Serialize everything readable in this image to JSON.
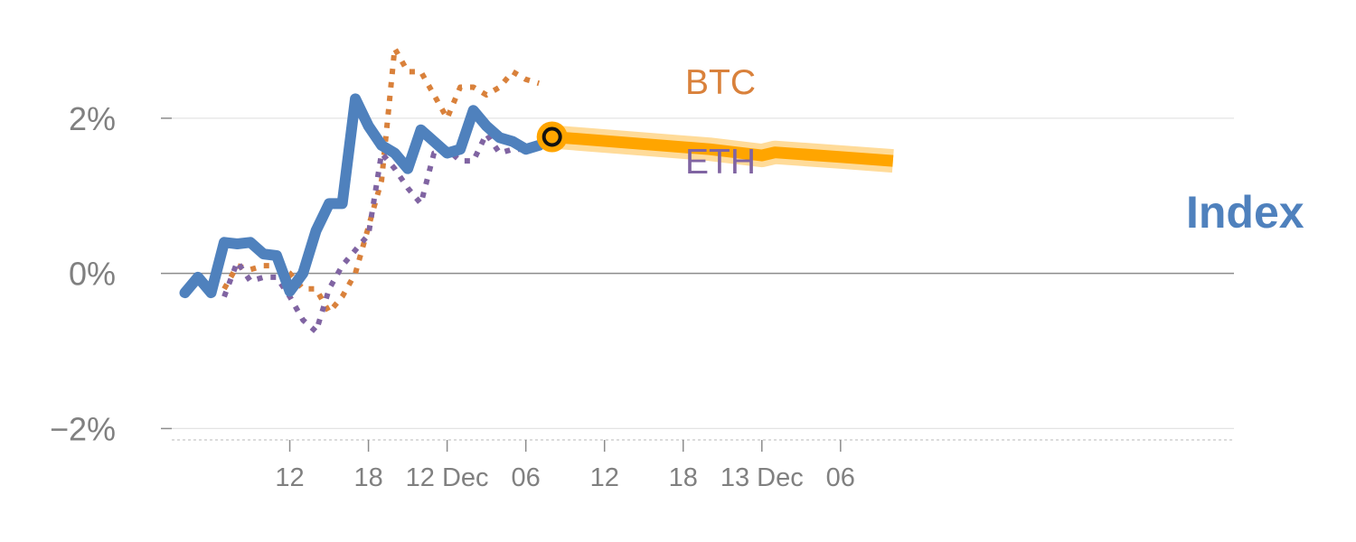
{
  "chart_data": {
    "type": "line",
    "y_axis": {
      "ticks": [
        {
          "value": 2,
          "label": "2%"
        },
        {
          "value": 0,
          "label": "0%"
        },
        {
          "value": -2,
          "label": "−2%"
        }
      ],
      "ylim": [
        -2.1,
        3.0
      ]
    },
    "x_axis": {
      "xlim": [
        "2024-12-11T03:00",
        "2024-12-14T12:00"
      ],
      "ticks": [
        {
          "value": "2024-12-11T12:00",
          "label": "12"
        },
        {
          "value": "2024-12-11T18:00",
          "label": "18"
        },
        {
          "value": "2024-12-12T00:00",
          "label": "12 Dec"
        },
        {
          "value": "2024-12-12T06:00",
          "label": "06"
        },
        {
          "value": "2024-12-12T12:00",
          "label": "12"
        },
        {
          "value": "2024-12-12T18:00",
          "label": "18"
        },
        {
          "value": "2024-12-13T00:00",
          "label": "13 Dec"
        },
        {
          "value": "2024-12-13T06:00",
          "label": "06"
        }
      ]
    },
    "series": [
      {
        "name": "BTC",
        "color": "#d9813b",
        "style": "dotted",
        "x": [
          "2024-12-11T07:00",
          "2024-12-11T08:00",
          "2024-12-11T09:00",
          "2024-12-11T10:00",
          "2024-12-11T11:00",
          "2024-12-11T12:00",
          "2024-12-11T13:00",
          "2024-12-11T14:00",
          "2024-12-11T15:00",
          "2024-12-11T16:00",
          "2024-12-11T17:00",
          "2024-12-11T18:00",
          "2024-12-11T19:00",
          "2024-12-11T20:00",
          "2024-12-11T21:00",
          "2024-12-11T22:00",
          "2024-12-11T23:00",
          "2024-12-12T00:00",
          "2024-12-12T01:00",
          "2024-12-12T02:00",
          "2024-12-12T03:00",
          "2024-12-12T04:00",
          "2024-12-12T05:00",
          "2024-12-12T06:00",
          "2024-12-12T07:00"
        ],
        "values": [
          -0.2,
          0.1,
          0.05,
          0.1,
          0.1,
          0.0,
          -0.2,
          -0.2,
          -0.5,
          -0.3,
          0.0,
          0.6,
          1.2,
          2.9,
          2.6,
          2.6,
          2.3,
          2.0,
          2.4,
          2.4,
          2.3,
          2.4,
          2.6,
          2.5,
          2.45
        ]
      },
      {
        "name": "ETH",
        "color": "#8064a2",
        "style": "dotted",
        "x": [
          "2024-12-11T07:00",
          "2024-12-11T08:00",
          "2024-12-11T09:00",
          "2024-12-11T10:00",
          "2024-12-11T11:00",
          "2024-12-11T12:00",
          "2024-12-11T13:00",
          "2024-12-11T14:00",
          "2024-12-11T15:00",
          "2024-12-11T16:00",
          "2024-12-11T17:00",
          "2024-12-11T18:00",
          "2024-12-11T19:00",
          "2024-12-11T20:00",
          "2024-12-11T21:00",
          "2024-12-11T22:00",
          "2024-12-11T23:00",
          "2024-12-12T00:00",
          "2024-12-12T01:00",
          "2024-12-12T02:00",
          "2024-12-12T03:00",
          "2024-12-12T04:00",
          "2024-12-12T05:00",
          "2024-12-12T06:00",
          "2024-12-12T07:00"
        ],
        "values": [
          -0.3,
          0.15,
          -0.1,
          -0.05,
          -0.05,
          -0.3,
          -0.6,
          -0.75,
          -0.2,
          0.1,
          0.3,
          0.5,
          1.55,
          1.35,
          1.1,
          0.9,
          1.55,
          1.6,
          1.45,
          1.45,
          1.8,
          1.55,
          1.6,
          1.6,
          1.65
        ]
      },
      {
        "name": "Index",
        "color": "#4f81bd",
        "style": "solid",
        "x": [
          "2024-12-11T04:00",
          "2024-12-11T05:00",
          "2024-12-11T06:00",
          "2024-12-11T07:00",
          "2024-12-11T08:00",
          "2024-12-11T09:00",
          "2024-12-11T10:00",
          "2024-12-11T11:00",
          "2024-12-11T12:00",
          "2024-12-11T13:00",
          "2024-12-11T14:00",
          "2024-12-11T15:00",
          "2024-12-11T16:00",
          "2024-12-11T17:00",
          "2024-12-11T18:00",
          "2024-12-11T19:00",
          "2024-12-11T20:00",
          "2024-12-11T21:00",
          "2024-12-11T22:00",
          "2024-12-11T23:00",
          "2024-12-12T00:00",
          "2024-12-12T01:00",
          "2024-12-12T02:00",
          "2024-12-12T03:00",
          "2024-12-12T04:00",
          "2024-12-12T05:00",
          "2024-12-12T06:00",
          "2024-12-12T07:00"
        ],
        "values": [
          -0.25,
          -0.05,
          -0.25,
          0.4,
          0.38,
          0.4,
          0.25,
          0.23,
          -0.23,
          0.0,
          0.55,
          0.9,
          0.9,
          2.25,
          1.9,
          1.65,
          1.55,
          1.35,
          1.85,
          1.7,
          1.55,
          1.6,
          2.1,
          1.9,
          1.75,
          1.7,
          1.6,
          1.65
        ]
      },
      {
        "name": "forecast",
        "color": "#ffa500",
        "style": "band",
        "x": [
          "2024-12-12T08:00",
          "2024-12-12T20:00",
          "2024-12-13T00:00",
          "2024-12-13T01:00",
          "2024-12-13T06:00",
          "2024-12-13T10:00"
        ],
        "values": [
          1.76,
          1.6,
          1.52,
          1.56,
          1.5,
          1.45
        ]
      }
    ],
    "marker": {
      "x": "2024-12-12T08:00",
      "value": 1.76
    },
    "labels": {
      "btc": {
        "text": "BTC",
        "color": "#d9813b"
      },
      "eth": {
        "text": "ETH",
        "color": "#8064a2"
      },
      "index": {
        "text": "Index",
        "color": "#4f81bd"
      }
    }
  }
}
